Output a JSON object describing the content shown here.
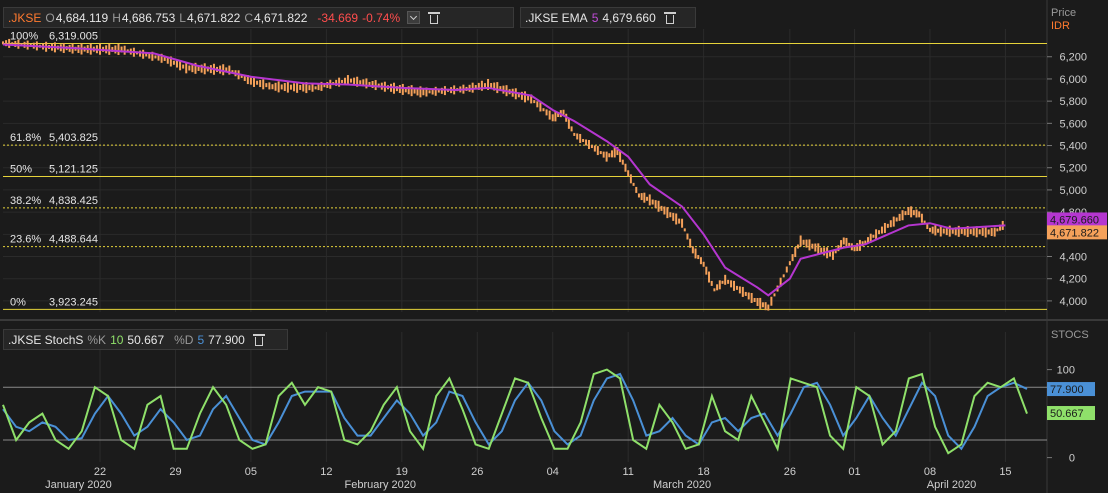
{
  "legend_main": {
    "symbol": ".JKSE",
    "o_label": "O",
    "o_val": "4,684.119",
    "h_label": "H",
    "h_val": "4,686.753",
    "l_label": "L",
    "l_val": "4,671.822",
    "c_label": "C",
    "c_val": "4,671.822",
    "change": "-34.669",
    "change_pct": "-0.74%"
  },
  "legend_ema": {
    "label": ".JKSE EMA",
    "period": "5",
    "value": "4,679.660"
  },
  "legend_stoch": {
    "label": ".JKSE StochS",
    "k_label": "%K",
    "k_period": "10",
    "k_value": "50.667",
    "d_label": "%D",
    "d_period": "5",
    "d_value": "77.900"
  },
  "price_axis_header": {
    "title": "Price",
    "currency": "IDR"
  },
  "stoch_axis_header": {
    "title": "STOCS"
  },
  "colors": {
    "background": "#1b1b1b",
    "candle": "#f5a15a",
    "ema": "#b536d0",
    "fib": "#e6d33a",
    "stoch_k": "#8fe06a",
    "stoch_d": "#4a90d6",
    "grid": "#2b2b2b"
  },
  "chart_data": [
    {
      "type": "line",
      "title": "",
      "ylim": [
        3900,
        6450
      ],
      "y_ticks": [
        "6,200",
        "6,000",
        "5,800",
        "5,600",
        "5,400",
        "5,200",
        "5,000",
        "4,800",
        "4,600",
        "4,400",
        "4,200",
        "4,000"
      ],
      "y_tick_values": [
        6200,
        6000,
        5800,
        5600,
        5400,
        5200,
        5000,
        4800,
        4600,
        4400,
        4200,
        4000
      ],
      "x_tick_labels": [
        "22",
        "29",
        "05",
        "12",
        "19",
        "26",
        "04",
        "11",
        "18",
        "26",
        "01",
        "08",
        "15"
      ],
      "x_tick_dates": [
        "2020-01-22",
        "2020-01-29",
        "2020-02-05",
        "2020-02-12",
        "2020-02-19",
        "2020-02-26",
        "2020-03-04",
        "2020-03-11",
        "2020-03-18",
        "2020-03-26",
        "2020-04-01",
        "2020-04-08",
        "2020-04-15"
      ],
      "month_labels": [
        "January 2020",
        "February 2020",
        "March 2020",
        "April 2020"
      ],
      "month_dates": [
        "2020-01-20",
        "2020-02-17",
        "2020-03-16",
        "2020-04-10"
      ],
      "date_range": [
        "2020-01-13",
        "2020-04-17"
      ],
      "series": [
        {
          "price_points": [
            [
              "2020-01-13",
              6325
            ],
            [
              "2020-01-17",
              6290
            ],
            [
              "2020-01-20",
              6270
            ],
            [
              "2020-01-24",
              6265
            ],
            [
              "2020-01-28",
              6180
            ],
            [
              "2020-01-30",
              6100
            ],
            [
              "2020-02-03",
              6080
            ],
            [
              "2020-02-05",
              5980
            ],
            [
              "2020-02-07",
              5930
            ],
            [
              "2020-02-11",
              5920
            ],
            [
              "2020-02-14",
              5990
            ],
            [
              "2020-02-18",
              5920
            ],
            [
              "2020-02-21",
              5880
            ],
            [
              "2020-02-25",
              5910
            ],
            [
              "2020-02-27",
              5950
            ],
            [
              "2020-03-02",
              5820
            ],
            [
              "2020-03-04",
              5650
            ],
            [
              "2020-03-05",
              5700
            ],
            [
              "2020-03-06",
              5500
            ],
            [
              "2020-03-09",
              5300
            ],
            [
              "2020-03-10",
              5350
            ],
            [
              "2020-03-11",
              5150
            ],
            [
              "2020-03-12",
              4950
            ],
            [
              "2020-03-13",
              4910
            ],
            [
              "2020-03-16",
              4700
            ],
            [
              "2020-03-17",
              4460
            ],
            [
              "2020-03-18",
              4330
            ],
            [
              "2020-03-19",
              4100
            ],
            [
              "2020-03-20",
              4190
            ],
            [
              "2020-03-23",
              3990
            ],
            [
              "2020-03-24",
              3940
            ],
            [
              "2020-03-26",
              4340
            ],
            [
              "2020-03-27",
              4540
            ],
            [
              "2020-03-30",
              4410
            ],
            [
              "2020-03-31",
              4540
            ],
            [
              "2020-04-01",
              4470
            ],
            [
              "2020-04-02",
              4530
            ],
            [
              "2020-04-03",
              4600
            ],
            [
              "2020-04-06",
              4810
            ],
            [
              "2020-04-07",
              4780
            ],
            [
              "2020-04-08",
              4640
            ],
            [
              "2020-04-09",
              4630
            ],
            [
              "2020-04-14",
              4620
            ],
            [
              "2020-04-15",
              4700
            ]
          ]
        },
        {
          "name": ".JKSE EMA 5",
          "ema_points": [
            [
              "2020-01-13",
              6310
            ],
            [
              "2020-01-20",
              6275
            ],
            [
              "2020-01-27",
              6230
            ],
            [
              "2020-01-31",
              6120
            ],
            [
              "2020-02-05",
              6020
            ],
            [
              "2020-02-10",
              5960
            ],
            [
              "2020-02-14",
              5950
            ],
            [
              "2020-02-19",
              5920
            ],
            [
              "2020-02-24",
              5900
            ],
            [
              "2020-02-27",
              5920
            ],
            [
              "2020-03-02",
              5850
            ],
            [
              "2020-03-04",
              5720
            ],
            [
              "2020-03-06",
              5620
            ],
            [
              "2020-03-09",
              5440
            ],
            [
              "2020-03-11",
              5300
            ],
            [
              "2020-03-13",
              5050
            ],
            [
              "2020-03-16",
              4850
            ],
            [
              "2020-03-18",
              4600
            ],
            [
              "2020-03-20",
              4300
            ],
            [
              "2020-03-23",
              4120
            ],
            [
              "2020-03-24",
              4050
            ],
            [
              "2020-03-26",
              4200
            ],
            [
              "2020-03-27",
              4380
            ],
            [
              "2020-03-31",
              4480
            ],
            [
              "2020-04-02",
              4510
            ],
            [
              "2020-04-06",
              4680
            ],
            [
              "2020-04-08",
              4700
            ],
            [
              "2020-04-10",
              4650
            ],
            [
              "2020-04-15",
              4680
            ]
          ]
        }
      ],
      "fib_levels": [
        {
          "pct": "100%",
          "value": "6,319.005",
          "num": 6319.005,
          "style": "solid"
        },
        {
          "pct": "61.8%",
          "value": "5,403.825",
          "num": 5403.825,
          "style": "dashed"
        },
        {
          "pct": "50%",
          "value": "5,121.125",
          "num": 5121.125,
          "style": "solid"
        },
        {
          "pct": "38.2%",
          "value": "4,838.425",
          "num": 4838.425,
          "style": "dashed"
        },
        {
          "pct": "23.6%",
          "value": "4,488.644",
          "num": 4488.644,
          "style": "dashed"
        },
        {
          "pct": "0%",
          "value": "3,923.245",
          "num": 3923.245,
          "style": "solid"
        }
      ],
      "price_badges": [
        {
          "label": "4,679.660",
          "value": 4679.66,
          "color": "#b536d0"
        },
        {
          "label": "4,671.822",
          "value": 4671.822,
          "color": "#f5a15a"
        }
      ]
    },
    {
      "type": "line",
      "title": "",
      "ylim": [
        -5,
        120
      ],
      "y_ticks": [
        "100",
        "50",
        "0"
      ],
      "y_tick_values": [
        100,
        50,
        0
      ],
      "band_lines": [
        80,
        20
      ],
      "series": [
        {
          "name": ".JKSE StochS %K 10",
          "values": [
            60,
            20,
            40,
            50,
            20,
            10,
            30,
            80,
            70,
            20,
            10,
            60,
            70,
            10,
            10,
            50,
            80,
            60,
            20,
            10,
            15,
            70,
            85,
            60,
            80,
            75,
            20,
            15,
            30,
            60,
            80,
            30,
            10,
            70,
            90,
            55,
            15,
            10,
            50,
            90,
            85,
            45,
            10,
            10,
            40,
            95,
            100,
            90,
            20,
            10,
            60,
            40,
            10,
            15,
            70,
            30,
            20,
            70,
            40,
            10,
            90,
            85,
            80,
            25,
            10,
            80,
            70,
            15,
            30,
            90,
            95,
            35,
            5,
            15,
            70,
            85,
            80,
            90,
            50
          ]
        },
        {
          "name": ".JKSE StochS %D 5",
          "values": [
            55,
            35,
            30,
            40,
            35,
            20,
            22,
            50,
            70,
            50,
            25,
            35,
            55,
            40,
            20,
            25,
            55,
            70,
            45,
            20,
            15,
            40,
            70,
            75,
            75,
            75,
            45,
            25,
            25,
            45,
            65,
            50,
            25,
            40,
            75,
            70,
            40,
            15,
            30,
            65,
            85,
            65,
            30,
            15,
            25,
            65,
            90,
            95,
            65,
            25,
            30,
            45,
            25,
            15,
            40,
            45,
            30,
            45,
            50,
            25,
            50,
            80,
            85,
            60,
            25,
            45,
            70,
            45,
            25,
            55,
            85,
            70,
            25,
            10,
            35,
            70,
            80,
            85,
            78
          ]
        }
      ],
      "value_badges": [
        {
          "label": "77.900",
          "value": 77.9,
          "color": "#4a90d6"
        },
        {
          "label": "50.667",
          "value": 50.667,
          "color": "#8fe06a"
        }
      ]
    }
  ]
}
